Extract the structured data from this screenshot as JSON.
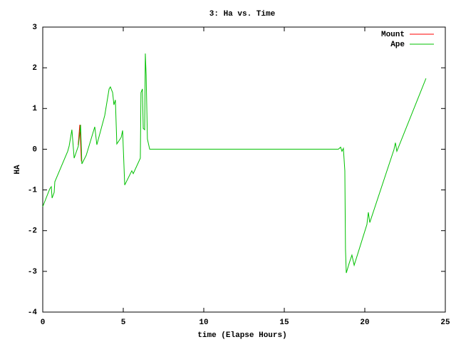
{
  "chart_data": {
    "type": "line",
    "title": "3: Ha vs. Time",
    "x_label": "time (Elapse Hours)",
    "y_label": "HA",
    "xlim": [
      0,
      25
    ],
    "xticks": [
      0,
      5,
      10,
      15,
      20,
      25
    ],
    "ylim": [
      -4,
      3
    ],
    "yticks": [
      -4,
      -3,
      -2,
      -1,
      0,
      1,
      2,
      3
    ],
    "grid": false,
    "legend": "top-right",
    "series": [
      {
        "name": "Mount",
        "color": "#ff0000",
        "x": [
          2.2,
          2.3,
          2.4
        ],
        "values": [
          0.1,
          0.6,
          -0.3
        ]
      },
      {
        "name": "Ape",
        "color": "#00c000",
        "x": [
          0,
          0.44,
          0.53,
          0.58,
          0.71,
          0.75,
          1.55,
          1.64,
          1.81,
          1.95,
          2.21,
          2.35,
          2.43,
          2.7,
          3.23,
          3.36,
          3.85,
          4.12,
          4.2,
          4.34,
          4.42,
          4.51,
          4.6,
          4.87,
          4.96,
          5.09,
          5.53,
          5.62,
          6.06,
          6.1,
          6.19,
          6.24,
          6.33,
          6.37,
          6.42,
          6.5,
          6.64,
          18.36,
          18.5,
          18.58,
          18.67,
          18.76,
          18.8,
          18.85,
          19.03,
          19.2,
          19.34,
          20.13,
          20.22,
          20.31,
          21.81,
          21.9,
          21.99,
          23.8
        ],
        "values": [
          -1.41,
          -0.97,
          -0.92,
          -1.2,
          -1.06,
          -0.8,
          -0.05,
          0.08,
          0.48,
          -0.22,
          0.08,
          0.6,
          -0.36,
          -0.15,
          0.55,
          0.11,
          0.83,
          1.48,
          1.53,
          1.39,
          1.09,
          1.21,
          0.13,
          0.29,
          0.46,
          -0.88,
          -0.53,
          -0.6,
          -0.22,
          1.39,
          1.48,
          0.51,
          0.48,
          2.35,
          1.83,
          0.25,
          0,
          0,
          0.05,
          -0.05,
          0.02,
          -0.53,
          -2.45,
          -3.04,
          -2.8,
          -2.6,
          -2.85,
          -1.85,
          -1.55,
          -1.8,
          -0.01,
          0.16,
          -0.05,
          1.74
        ]
      }
    ]
  }
}
